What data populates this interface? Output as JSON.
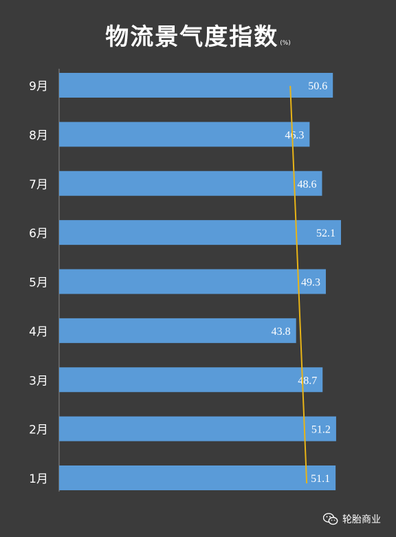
{
  "chart_data": {
    "type": "bar",
    "orientation": "horizontal",
    "title": "物流景气度指数",
    "unit": "(%)",
    "categories": [
      "1月",
      "2月",
      "3月",
      "4月",
      "5月",
      "6月",
      "7月",
      "8月",
      "9月"
    ],
    "values": [
      51.1,
      51.2,
      48.7,
      43.8,
      49.3,
      52.1,
      48.6,
      46.3,
      50.6
    ],
    "trend_line": {
      "from_category": "1月",
      "to_category": "9月",
      "color": "#e8b417"
    },
    "bar_color": "#5a9bd8",
    "background": "#3b3b3b",
    "grid": false,
    "legend": "none"
  },
  "watermark": {
    "text": "轮胎商业",
    "icon": "wechat-icon"
  }
}
